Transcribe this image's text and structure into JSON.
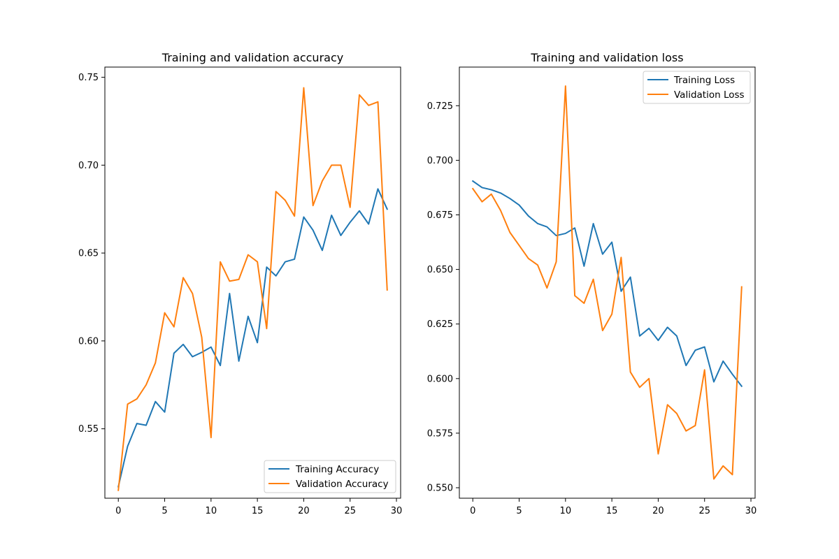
{
  "chart_data": [
    {
      "type": "line",
      "title": "Training and validation accuracy",
      "xlabel": "",
      "ylabel": "",
      "xlim": [
        -1.45,
        30.45
      ],
      "ylim": [
        0.5105,
        0.7558
      ],
      "xticks": [
        0,
        5,
        10,
        15,
        20,
        25,
        30
      ],
      "yticks": [
        0.55,
        0.6,
        0.65,
        0.7,
        0.75
      ],
      "ytick_labels": [
        "0.55",
        "0.60",
        "0.65",
        "0.70",
        "0.75"
      ],
      "grid": false,
      "legend_position": "lower right",
      "x": [
        0,
        1,
        2,
        3,
        4,
        5,
        6,
        7,
        8,
        9,
        10,
        11,
        12,
        13,
        14,
        15,
        16,
        17,
        18,
        19,
        20,
        21,
        22,
        23,
        24,
        25,
        26,
        27,
        28,
        29
      ],
      "series": [
        {
          "name": "Training Accuracy",
          "color": "#1f77b4",
          "values": [
            0.517,
            0.54,
            0.553,
            0.552,
            0.5655,
            0.5595,
            0.593,
            0.598,
            0.591,
            0.5935,
            0.5965,
            0.586,
            0.627,
            0.5885,
            0.614,
            0.599,
            0.642,
            0.637,
            0.645,
            0.6465,
            0.6705,
            0.663,
            0.6515,
            0.6715,
            0.66,
            0.6675,
            0.674,
            0.6665,
            0.6865,
            0.675
          ]
        },
        {
          "name": "Validation Accuracy",
          "color": "#ff7f0e",
          "values": [
            0.515,
            0.564,
            0.567,
            0.575,
            0.5875,
            0.616,
            0.608,
            0.636,
            0.627,
            0.602,
            0.545,
            0.645,
            0.634,
            0.635,
            0.649,
            0.645,
            0.607,
            0.685,
            0.68,
            0.671,
            0.744,
            0.677,
            0.691,
            0.7,
            0.7,
            0.676,
            0.74,
            0.734,
            0.736,
            0.629
          ]
        }
      ]
    },
    {
      "type": "line",
      "title": "Training and validation loss",
      "xlabel": "",
      "ylabel": "",
      "xlim": [
        -1.45,
        30.45
      ],
      "ylim": [
        0.5452,
        0.7427
      ],
      "xticks": [
        0,
        5,
        10,
        15,
        20,
        25,
        30
      ],
      "yticks": [
        0.55,
        0.575,
        0.6,
        0.625,
        0.65,
        0.675,
        0.7,
        0.725
      ],
      "ytick_labels": [
        "0.550",
        "0.575",
        "0.600",
        "0.625",
        "0.650",
        "0.675",
        "0.700",
        "0.725"
      ],
      "grid": false,
      "legend_position": "upper right",
      "x": [
        0,
        1,
        2,
        3,
        4,
        5,
        6,
        7,
        8,
        9,
        10,
        11,
        12,
        13,
        14,
        15,
        16,
        17,
        18,
        19,
        20,
        21,
        22,
        23,
        24,
        25,
        26,
        27,
        28,
        29
      ],
      "series": [
        {
          "name": "Training Loss",
          "color": "#1f77b4",
          "values": [
            0.6905,
            0.6875,
            0.6865,
            0.685,
            0.6825,
            0.6795,
            0.6745,
            0.671,
            0.6695,
            0.6655,
            0.6665,
            0.669,
            0.6515,
            0.671,
            0.657,
            0.6625,
            0.64,
            0.6465,
            0.6195,
            0.623,
            0.6175,
            0.6235,
            0.6195,
            0.606,
            0.613,
            0.6145,
            0.5985,
            0.608,
            0.602,
            0.5965
          ]
        },
        {
          "name": "Validation Loss",
          "color": "#ff7f0e",
          "values": [
            0.687,
            0.681,
            0.6845,
            0.677,
            0.667,
            0.661,
            0.655,
            0.652,
            0.6415,
            0.6535,
            0.734,
            0.638,
            0.6345,
            0.6455,
            0.622,
            0.6295,
            0.6555,
            0.603,
            0.596,
            0.6,
            0.5655,
            0.588,
            0.584,
            0.576,
            0.5785,
            0.604,
            0.554,
            0.56,
            0.556,
            0.642
          ]
        }
      ]
    }
  ]
}
